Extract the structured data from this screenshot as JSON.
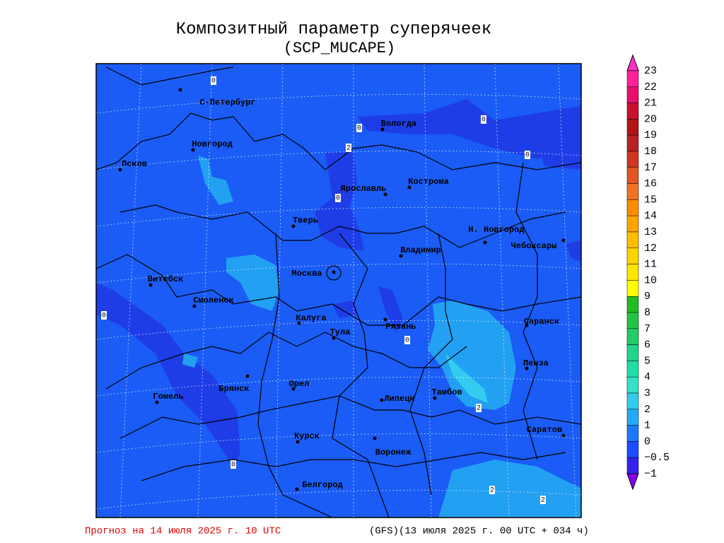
{
  "title": "Композитный параметр суперячеек",
  "subtitle": "(SCP_MUCAPE)",
  "cities": [
    "С-Петербург",
    "Вологда",
    "Новгород",
    "Псков",
    "Ярославль",
    "Кострома",
    "Тверь",
    "Н. Новгород",
    "Чебоксары",
    "Владимир",
    "Москва",
    "Витебск",
    "Смоленск",
    "Калуга",
    "Тула",
    "Рязань",
    "Саранск",
    "Пенза",
    "Брянск",
    "Орел",
    "Гомель",
    "Тамбов",
    "Липецк",
    "Саратов",
    "Курск",
    "Воронеж",
    "Белгород"
  ],
  "contour_labels": [
    0,
    0,
    0,
    0,
    2,
    0,
    0,
    0,
    2,
    0,
    2,
    2
  ],
  "colorbar": {
    "labels": [
      "23",
      "22",
      "21",
      "20",
      "19",
      "18",
      "17",
      "16",
      "15",
      "14",
      "13",
      "12",
      "11",
      "10",
      "9",
      "8",
      "7",
      "6",
      "5",
      "4",
      "3",
      "2",
      "1",
      "0",
      "−0.5",
      "−1"
    ],
    "colors": [
      "#ff33cc",
      "#ff2299",
      "#e8106a",
      "#cc1030",
      "#b01515",
      "#b82222",
      "#d03522",
      "#e05522",
      "#f07222",
      "#ff8c00",
      "#ffa500",
      "#ffbe00",
      "#ffd200",
      "#ffe600",
      "#ffff00",
      "#22bb22",
      "#22c444",
      "#22cc66",
      "#22d488",
      "#22dda8",
      "#33e2c8",
      "#33ccee",
      "#22aaff",
      "#1a7aff",
      "#1a4dff",
      "#3322ee",
      "#8800ee"
    ]
  },
  "footer": {
    "forecast": "Прогноз на 14 июля 2025 г. 10 UTC",
    "model": "(GFS)(13 июля 2025 г. 00 UTC + 034 ч)"
  }
}
